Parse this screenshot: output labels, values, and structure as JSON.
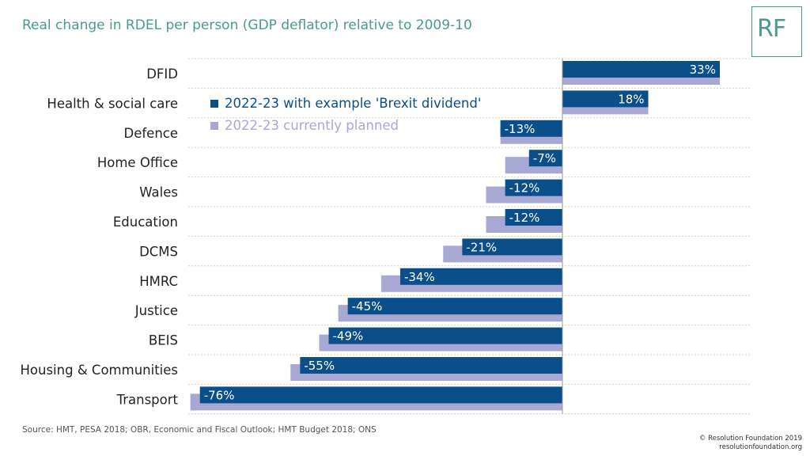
{
  "title": "Real change in RDEL per person (GDP deflator) relative to 2009-10",
  "logo": "RF",
  "source": "Source: HMT, PESA 2018; OBR, Economic and Fiscal Outlook; HMT Budget 2018; ONS",
  "copyright": {
    "line1": "© Resolution Foundation 2019",
    "line2": "resolutionfoundation.org"
  },
  "colors": {
    "brexit": "#0b4f8a",
    "planned": "#a8a8d4",
    "accent": "#4a9a8f"
  },
  "chart_data": {
    "type": "bar",
    "orientation": "horizontal",
    "title": "Real change in RDEL per person (GDP deflator) relative to 2009-10",
    "categories": [
      "DFID",
      "Health & social care",
      "Defence",
      "Home Office",
      "Wales",
      "Education",
      "DCMS",
      "HMRC",
      "Justice",
      "BEIS",
      "Housing & Communities",
      "Transport"
    ],
    "series": [
      {
        "name": "2022-23 with example 'Brexit dividend'",
        "values": [
          33,
          18,
          -13,
          -7,
          -12,
          -12,
          -21,
          -34,
          -45,
          -49,
          -55,
          -76
        ],
        "labels": [
          "33%",
          "18%",
          "-13%",
          "-7%",
          "-12%",
          "-12%",
          "-21%",
          "-34%",
          "-45%",
          "-49%",
          "-55%",
          "-76%"
        ]
      },
      {
        "name": "2022-23 currently planned",
        "values": [
          33,
          18,
          -13,
          -12,
          -16,
          -16,
          -25,
          -38,
          -47,
          -51,
          -57,
          -78
        ]
      }
    ],
    "xlim": [
      -78,
      35
    ],
    "grid": true,
    "legend_position": "top-left"
  }
}
